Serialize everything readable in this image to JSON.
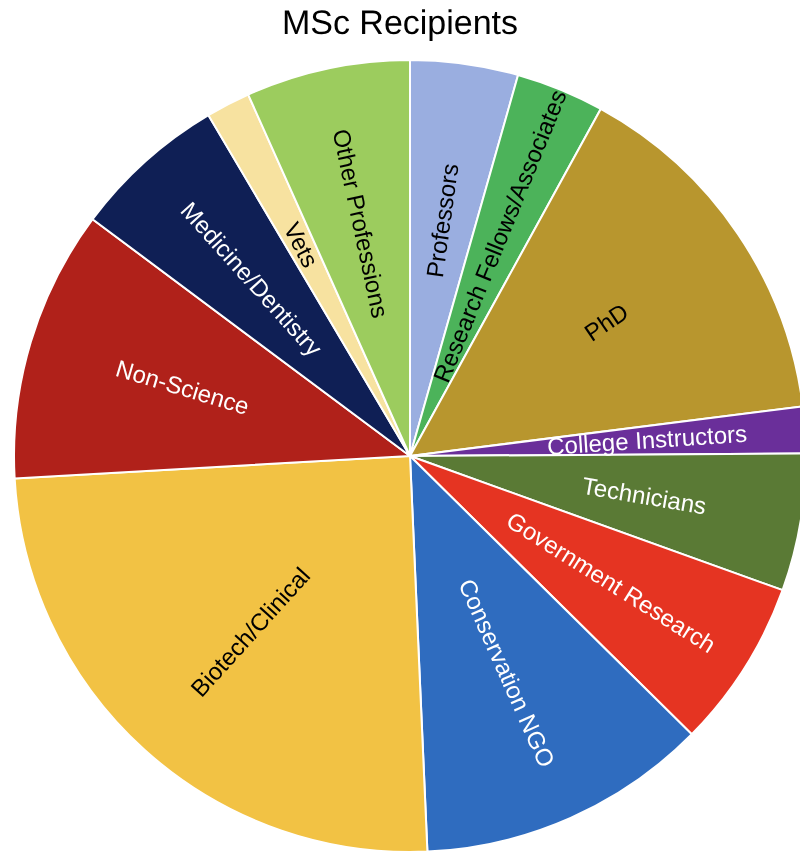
{
  "chart_data": {
    "type": "pie",
    "title": "MSc Recipients",
    "categories": [
      "Professors",
      "Research Fellows/Associates",
      "PhD",
      "College Instructors",
      "Technicians",
      "Government Research",
      "Conservation NGO",
      "Biotech/Clinical",
      "Non-Science",
      "Medicine/Dentistry",
      "Vets",
      "Other Professions"
    ],
    "values": [
      4.4,
      3.6,
      15.0,
      1.9,
      5.6,
      6.9,
      11.9,
      24.8,
      11.1,
      6.3,
      1.8,
      6.7
    ],
    "colors": [
      "#9aaee0",
      "#4cb35a",
      "#b8962e",
      "#6a2f9a",
      "#5a7a35",
      "#e53422",
      "#2f6cbf",
      "#f2c244",
      "#b0211a",
      "#0f1f55",
      "#f7e2a0",
      "#9ccc5e"
    ],
    "legend": false
  }
}
